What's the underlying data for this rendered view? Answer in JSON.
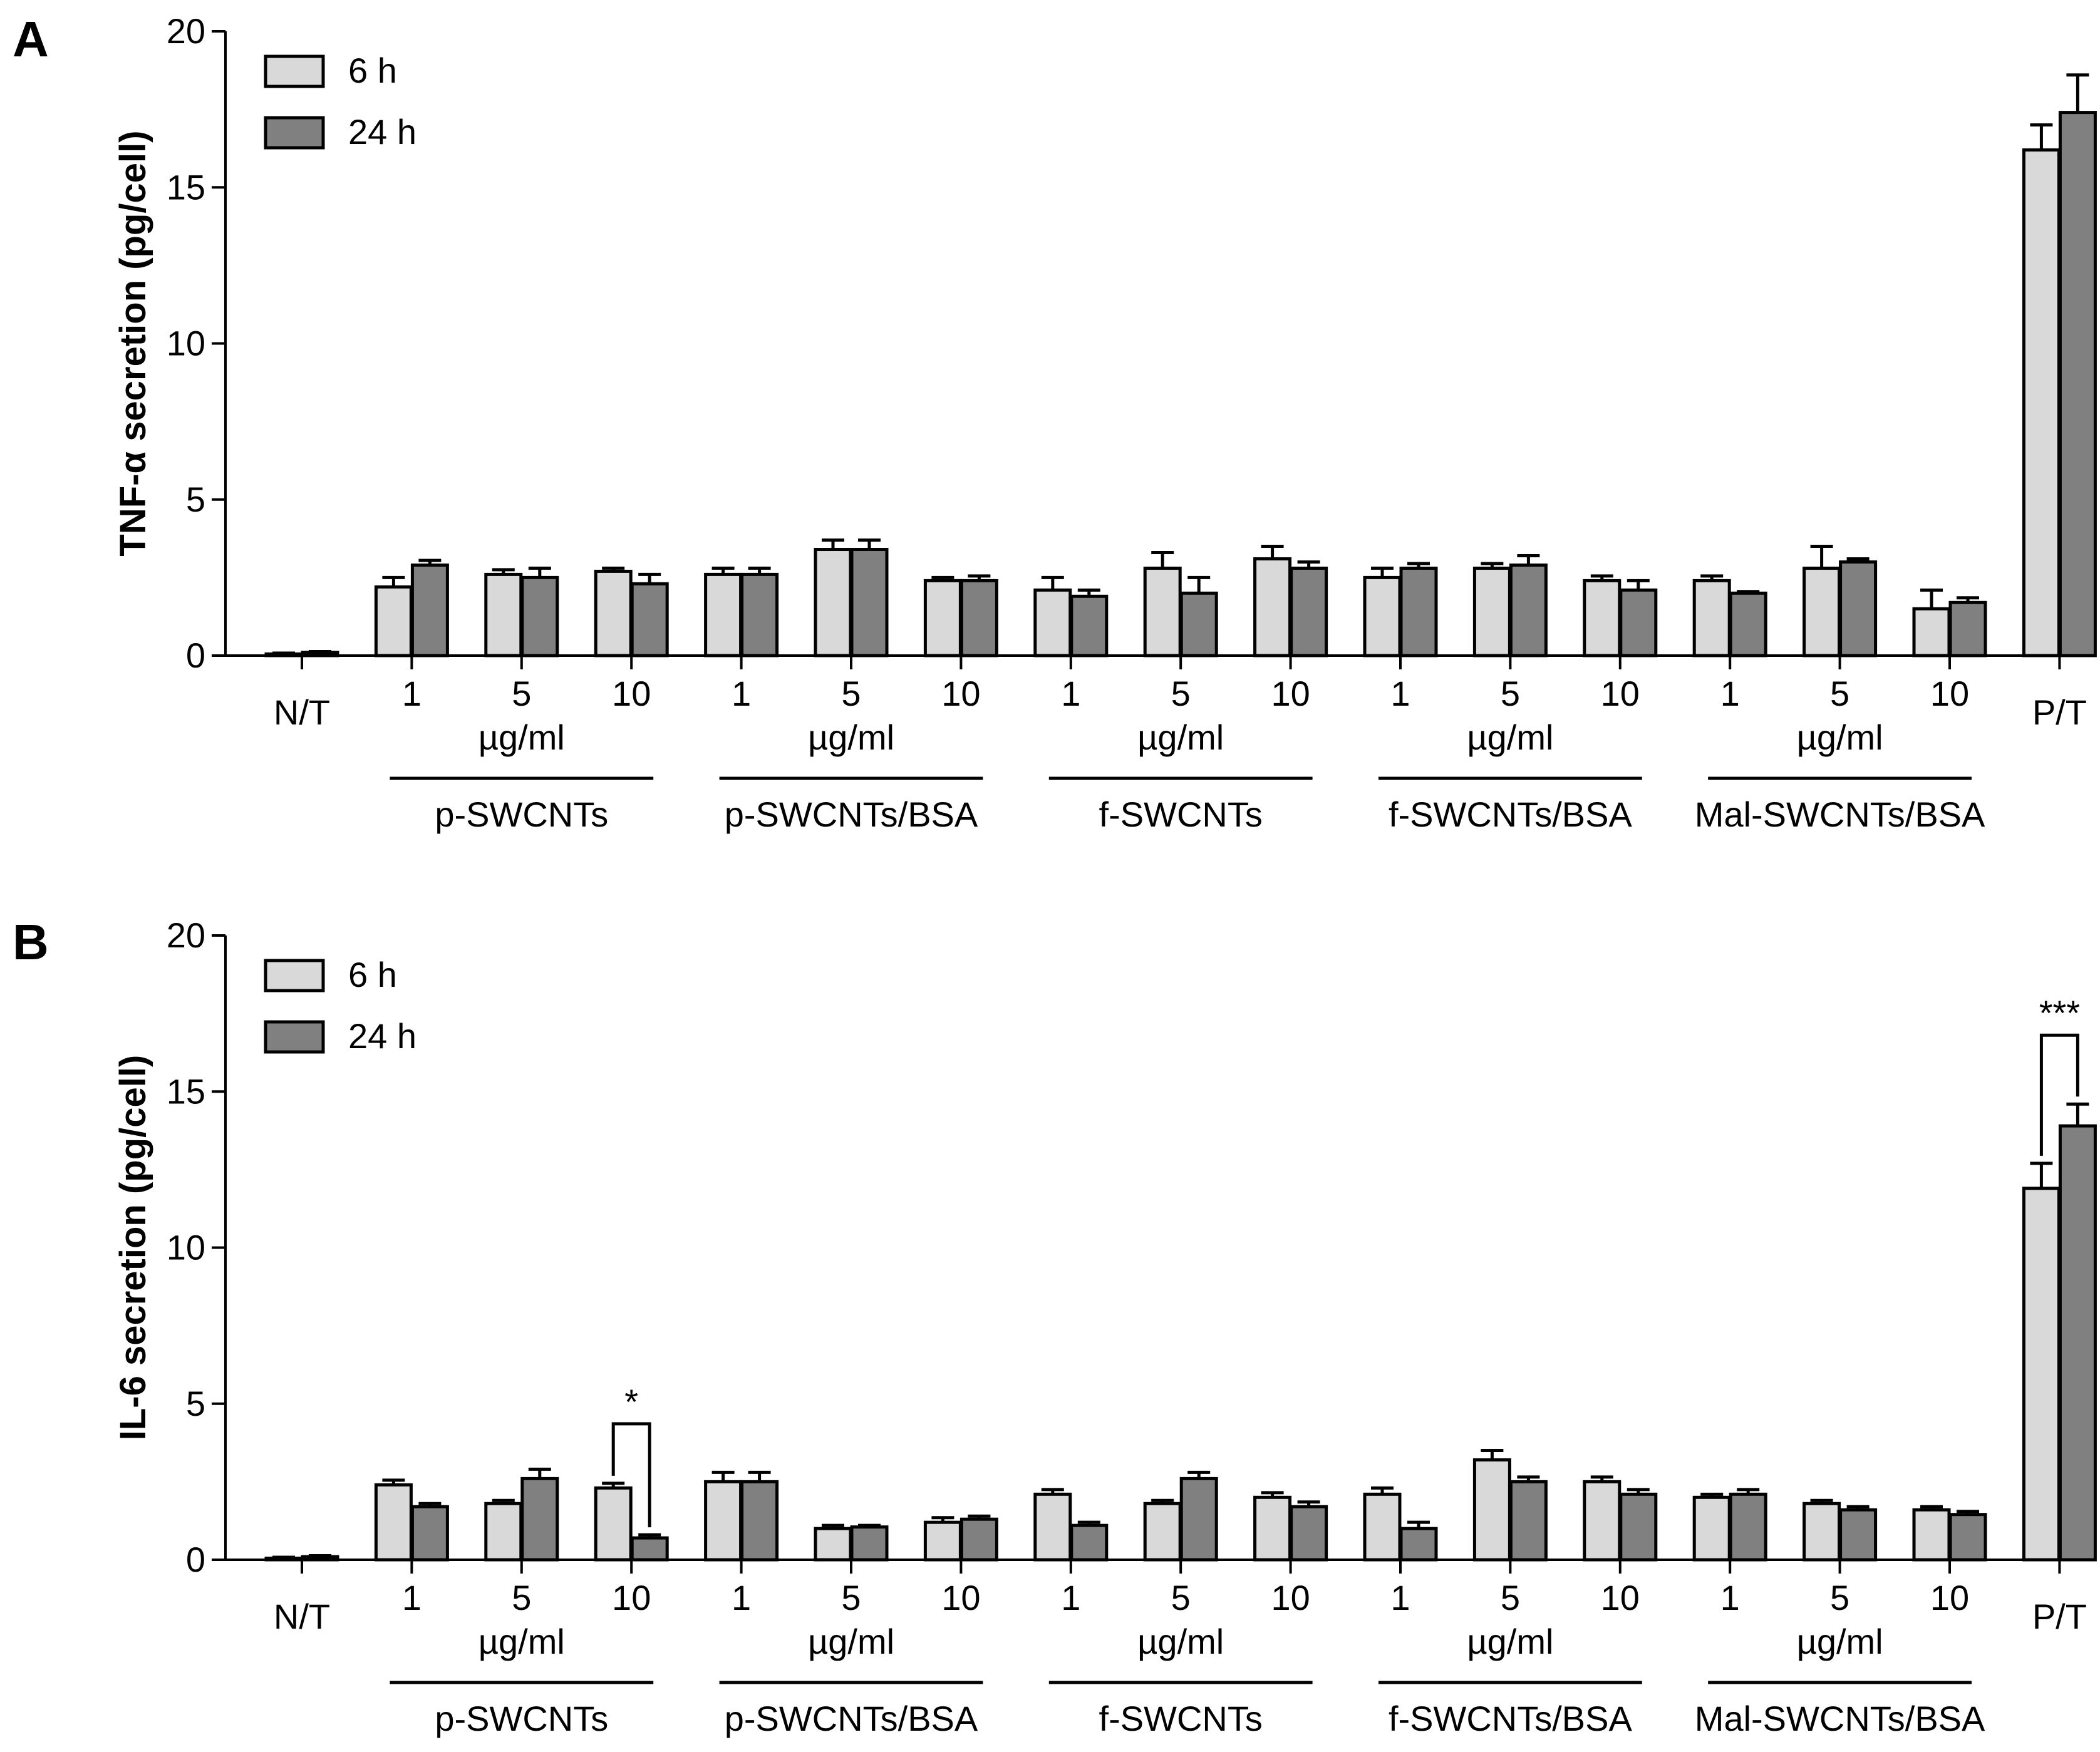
{
  "chart_data": [
    {
      "panel": "A",
      "type": "bar",
      "ylabel": "TNF-α secretion (pg/cell)",
      "ylim": [
        0,
        20
      ],
      "yticks": [
        0,
        5,
        10,
        15,
        20
      ],
      "legend_placement": "top-left",
      "categories": [
        "N/T",
        "1",
        "5",
        "10",
        "1",
        "5",
        "10",
        "1",
        "5",
        "10",
        "1",
        "5",
        "10",
        "1",
        "5",
        "10",
        "P/T"
      ],
      "unit_label": "µg/ml",
      "groups": [
        {
          "label": "p-SWCNTs",
          "start": 1,
          "end": 3
        },
        {
          "label": "p-SWCNTs/BSA",
          "start": 4,
          "end": 6
        },
        {
          "label": "f-SWCNTs",
          "start": 7,
          "end": 9
        },
        {
          "label": "f-SWCNTs/BSA",
          "start": 10,
          "end": 12
        },
        {
          "label": "Mal-SWCNTs/BSA",
          "start": 13,
          "end": 15
        }
      ],
      "series": [
        {
          "name": "6 h",
          "color": "#d9d9d9",
          "values": [
            0.05,
            2.2,
            2.6,
            2.7,
            2.6,
            3.4,
            2.4,
            2.1,
            2.8,
            3.1,
            2.5,
            2.8,
            2.4,
            2.4,
            2.8,
            1.5,
            16.2
          ],
          "errors": [
            0.03,
            0.3,
            0.15,
            0.1,
            0.2,
            0.3,
            0.1,
            0.4,
            0.5,
            0.4,
            0.3,
            0.15,
            0.15,
            0.15,
            0.7,
            0.6,
            0.8
          ]
        },
        {
          "name": "24 h",
          "color": "#808080",
          "values": [
            0.1,
            2.9,
            2.5,
            2.3,
            2.6,
            3.4,
            2.4,
            1.9,
            2.0,
            2.8,
            2.8,
            2.9,
            2.1,
            2.0,
            3.0,
            1.7,
            17.4
          ],
          "errors": [
            0.03,
            0.15,
            0.3,
            0.3,
            0.2,
            0.3,
            0.15,
            0.2,
            0.5,
            0.2,
            0.15,
            0.3,
            0.3,
            0.05,
            0.1,
            0.15,
            1.2
          ]
        }
      ],
      "annotations": []
    },
    {
      "panel": "B",
      "type": "bar",
      "ylabel": "IL-6 secretion (pg/cell)",
      "ylim": [
        0,
        20
      ],
      "yticks": [
        0,
        5,
        10,
        15,
        20
      ],
      "legend_placement": "top-left",
      "categories": [
        "N/T",
        "1",
        "5",
        "10",
        "1",
        "5",
        "10",
        "1",
        "5",
        "10",
        "1",
        "5",
        "10",
        "1",
        "5",
        "10",
        "P/T"
      ],
      "unit_label": "µg/ml",
      "groups": [
        {
          "label": "p-SWCNTs",
          "start": 1,
          "end": 3
        },
        {
          "label": "p-SWCNTs/BSA",
          "start": 4,
          "end": 6
        },
        {
          "label": "f-SWCNTs",
          "start": 7,
          "end": 9
        },
        {
          "label": "f-SWCNTs/BSA",
          "start": 10,
          "end": 12
        },
        {
          "label": "Mal-SWCNTs/BSA",
          "start": 13,
          "end": 15
        }
      ],
      "series": [
        {
          "name": "6 h",
          "color": "#d9d9d9",
          "values": [
            0.05,
            2.4,
            1.8,
            2.3,
            2.5,
            1.0,
            1.2,
            2.1,
            1.8,
            2.0,
            2.1,
            3.2,
            2.5,
            2.0,
            1.8,
            1.6,
            11.9
          ],
          "errors": [
            0.03,
            0.15,
            0.1,
            0.15,
            0.3,
            0.1,
            0.15,
            0.15,
            0.1,
            0.15,
            0.2,
            0.3,
            0.15,
            0.1,
            0.1,
            0.1,
            0.8
          ]
        },
        {
          "name": "24 h",
          "color": "#808080",
          "values": [
            0.1,
            1.7,
            2.6,
            0.7,
            2.5,
            1.05,
            1.3,
            1.1,
            2.6,
            1.7,
            1.0,
            2.5,
            2.1,
            2.1,
            1.6,
            1.45,
            13.9
          ],
          "errors": [
            0.03,
            0.1,
            0.3,
            0.1,
            0.3,
            0.05,
            0.1,
            0.1,
            0.2,
            0.15,
            0.2,
            0.15,
            0.15,
            0.15,
            0.1,
            0.1,
            0.7
          ]
        }
      ],
      "annotations": [
        {
          "category_index": 3,
          "label": "*"
        },
        {
          "category_index": 16,
          "label": "***"
        }
      ]
    }
  ]
}
